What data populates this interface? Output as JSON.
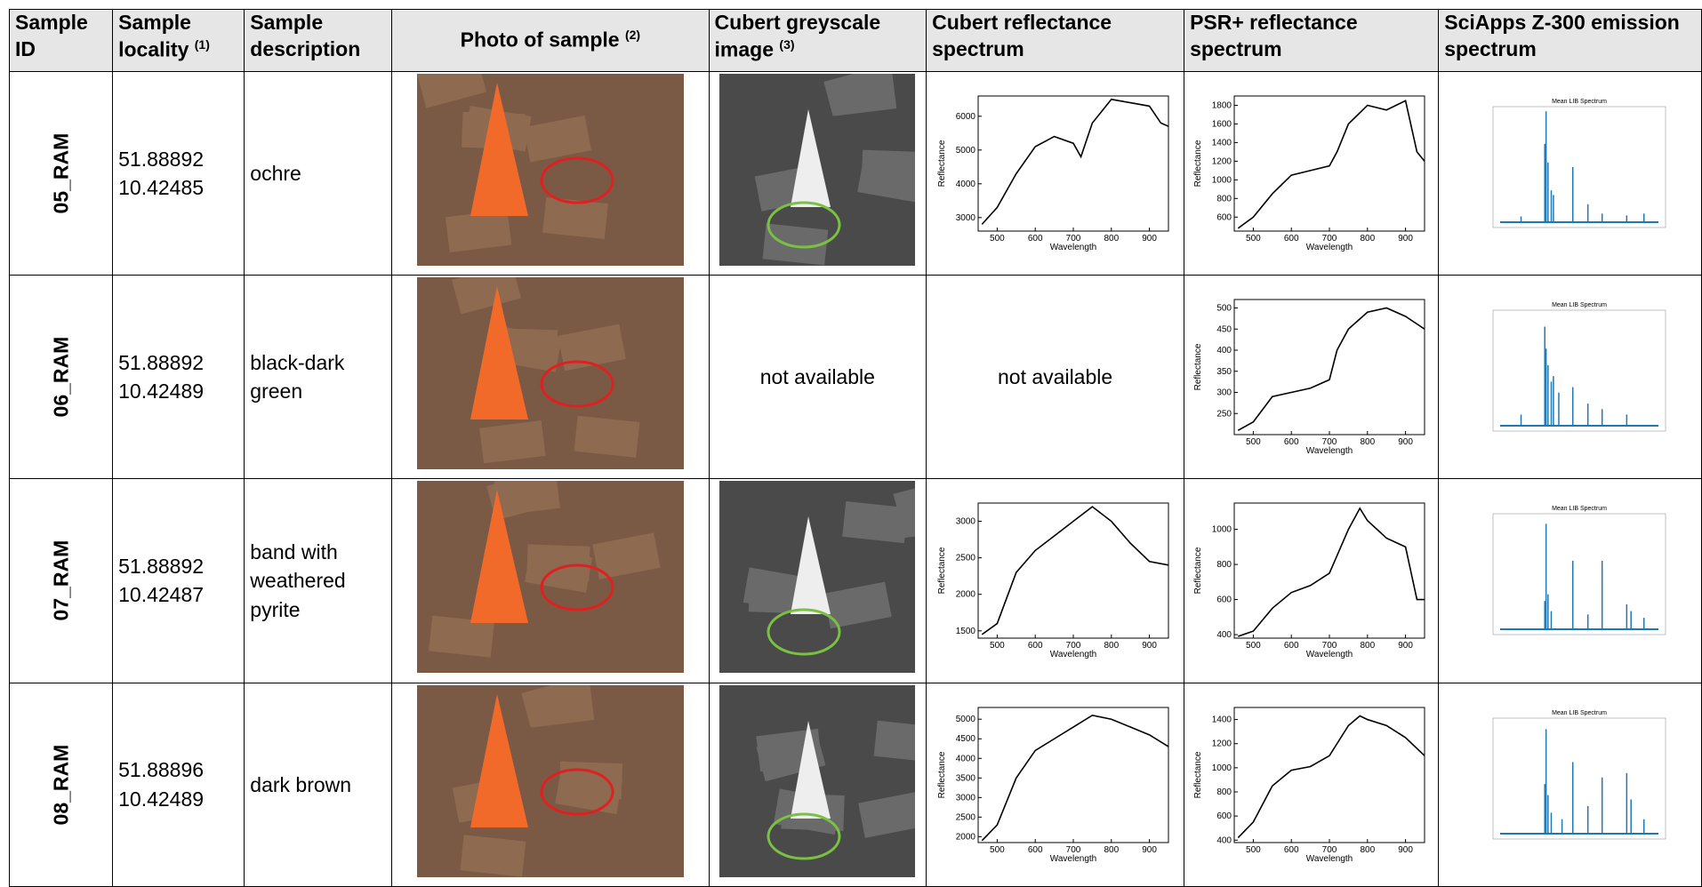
{
  "table": {
    "headers": [
      {
        "text": "Sample ID"
      },
      {
        "text": "Sample locality",
        "note": "(1)"
      },
      {
        "text": "Sample description"
      },
      {
        "text": "Photo of sample",
        "note": "(2)"
      },
      {
        "text": "Cubert greyscale image",
        "note": "(3)"
      },
      {
        "text": "Cubert reflectance spectrum"
      },
      {
        "text": "PSR+ reflectance spectrum"
      },
      {
        "text": "SciApps Z-300 emission spectrum"
      }
    ],
    "rows": [
      {
        "id": "05_RAM",
        "locality": [
          "51.88892",
          "10.42485"
        ],
        "description": "ochre",
        "cubert_spectrum": {
          "type": "line",
          "y_label": "Reflectance",
          "x_label": "Wavelength",
          "xlim": [
            450,
            950
          ],
          "ylim": [
            2600,
            6600
          ],
          "xticks": [
            500,
            600,
            700,
            800,
            900
          ],
          "yticks": [
            3000,
            4000,
            5000,
            6000
          ],
          "x": [
            460,
            500,
            550,
            600,
            650,
            700,
            720,
            750,
            800,
            850,
            900,
            930,
            950
          ],
          "values": [
            2800,
            3300,
            4300,
            5100,
            5400,
            5200,
            4800,
            5800,
            6500,
            6400,
            6300,
            5800,
            5700
          ]
        },
        "psr_spectrum": {
          "type": "line",
          "y_label": "Reflectance",
          "x_label": "Wavelength",
          "xlim": [
            450,
            950
          ],
          "ylim": [
            450,
            1900
          ],
          "xticks": [
            500,
            600,
            700,
            800,
            900
          ],
          "yticks": [
            600,
            800,
            1000,
            1200,
            1400,
            1600,
            1800
          ],
          "x": [
            460,
            500,
            550,
            600,
            650,
            700,
            720,
            750,
            800,
            850,
            900,
            930,
            950
          ],
          "values": [
            480,
            600,
            850,
            1050,
            1100,
            1150,
            1300,
            1600,
            1800,
            1750,
            1850,
            1300,
            1200
          ]
        },
        "emission": {
          "type": "spikes",
          "title": "Mean LIB Spectrum",
          "xlim": [
            150,
            950
          ],
          "ylim": [
            0,
            13000
          ],
          "x": [
            280,
            390,
            396,
            405,
            420,
            430,
            520,
            590,
            656,
            770,
            850
          ],
          "values": [
            1200,
            9000,
            12500,
            7000,
            4000,
            3500,
            6500,
            2500,
            1500,
            1300,
            1500
          ]
        }
      },
      {
        "id": "06_RAM",
        "locality": [
          "51.88892",
          "10.42489"
        ],
        "description": "black-dark green",
        "cubert_image": "not available",
        "cubert_spectrum": "not available",
        "psr_spectrum": {
          "type": "line",
          "y_label": "Reflectance",
          "x_label": "Wavelength",
          "xlim": [
            450,
            950
          ],
          "ylim": [
            200,
            520
          ],
          "xticks": [
            500,
            600,
            700,
            800,
            900
          ],
          "yticks": [
            250,
            300,
            350,
            400,
            450,
            500
          ],
          "x": [
            460,
            500,
            550,
            600,
            650,
            700,
            720,
            750,
            800,
            850,
            900,
            950
          ],
          "values": [
            210,
            230,
            290,
            300,
            310,
            330,
            400,
            450,
            490,
            500,
            480,
            450
          ]
        },
        "emission": {
          "type": "spikes",
          "title": "Mean LIB Spectrum",
          "xlim": [
            150,
            950
          ],
          "ylim": [
            0,
            2200
          ],
          "x": [
            280,
            390,
            396,
            405,
            420,
            430,
            455,
            520,
            590,
            656,
            770
          ],
          "values": [
            300,
            1900,
            1500,
            1200,
            900,
            1000,
            700,
            800,
            500,
            400,
            300
          ]
        }
      },
      {
        "id": "07_RAM",
        "locality": [
          "51.88892",
          "10.42487"
        ],
        "description": "band with weathered pyrite",
        "cubert_spectrum": {
          "type": "line",
          "y_label": "Reflectance",
          "x_label": "Wavelength",
          "xlim": [
            450,
            950
          ],
          "ylim": [
            1400,
            3250
          ],
          "xticks": [
            500,
            600,
            700,
            800,
            900
          ],
          "yticks": [
            1500,
            2000,
            2500,
            3000
          ],
          "x": [
            460,
            500,
            550,
            600,
            650,
            700,
            750,
            800,
            850,
            900,
            950
          ],
          "values": [
            1450,
            1600,
            2300,
            2600,
            2800,
            3000,
            3200,
            3000,
            2700,
            2450,
            2400
          ]
        },
        "psr_spectrum": {
          "type": "line",
          "y_label": "Reflectance",
          "x_label": "Wavelength",
          "xlim": [
            450,
            950
          ],
          "ylim": [
            380,
            1150
          ],
          "xticks": [
            500,
            600,
            700,
            800,
            900
          ],
          "yticks": [
            400,
            600,
            800,
            1000
          ],
          "x": [
            460,
            500,
            550,
            600,
            650,
            700,
            750,
            780,
            800,
            850,
            900,
            930,
            950
          ],
          "values": [
            390,
            420,
            550,
            640,
            680,
            750,
            1000,
            1120,
            1050,
            950,
            900,
            600,
            600
          ]
        },
        "emission": {
          "type": "spikes",
          "title": "Mean LIB Spectrum",
          "xlim": [
            150,
            950
          ],
          "ylim": [
            0,
            3600
          ],
          "x": [
            390,
            396,
            405,
            420,
            520,
            590,
            656,
            770,
            790,
            850
          ],
          "values": [
            1000,
            3300,
            1200,
            700,
            2200,
            600,
            2200,
            900,
            700,
            500
          ]
        }
      },
      {
        "id": "08_RAM",
        "locality": [
          "51.88896",
          "10.42489"
        ],
        "description": "dark brown",
        "cubert_spectrum": {
          "type": "line",
          "y_label": "Reflectance",
          "x_label": "Wavelength",
          "xlim": [
            450,
            950
          ],
          "ylim": [
            1850,
            5300
          ],
          "xticks": [
            500,
            600,
            700,
            800,
            900
          ],
          "yticks": [
            2000,
            2500,
            3000,
            3500,
            4000,
            4500,
            5000
          ],
          "x": [
            460,
            500,
            550,
            600,
            650,
            700,
            750,
            800,
            850,
            900,
            950
          ],
          "values": [
            1900,
            2300,
            3500,
            4200,
            4500,
            4800,
            5100,
            5000,
            4800,
            4600,
            4300
          ]
        },
        "psr_spectrum": {
          "type": "line",
          "y_label": "Reflectance",
          "x_label": "Wavelength",
          "xlim": [
            450,
            950
          ],
          "ylim": [
            380,
            1500
          ],
          "xticks": [
            500,
            600,
            700,
            800,
            900
          ],
          "yticks": [
            400,
            600,
            800,
            1000,
            1200,
            1400
          ],
          "x": [
            460,
            500,
            550,
            600,
            650,
            700,
            750,
            780,
            800,
            850,
            900,
            950
          ],
          "values": [
            420,
            550,
            850,
            980,
            1010,
            1100,
            1350,
            1430,
            1400,
            1350,
            1250,
            1100
          ]
        },
        "emission": {
          "type": "spikes",
          "title": "Mean LIB Spectrum",
          "xlim": [
            150,
            950
          ],
          "ylim": [
            0,
            5500
          ],
          "x": [
            390,
            396,
            405,
            420,
            470,
            520,
            590,
            656,
            770,
            790,
            850
          ],
          "values": [
            2500,
            5000,
            2000,
            1200,
            900,
            3500,
            1500,
            2800,
            3000,
            1800,
            900
          ]
        }
      }
    ]
  }
}
